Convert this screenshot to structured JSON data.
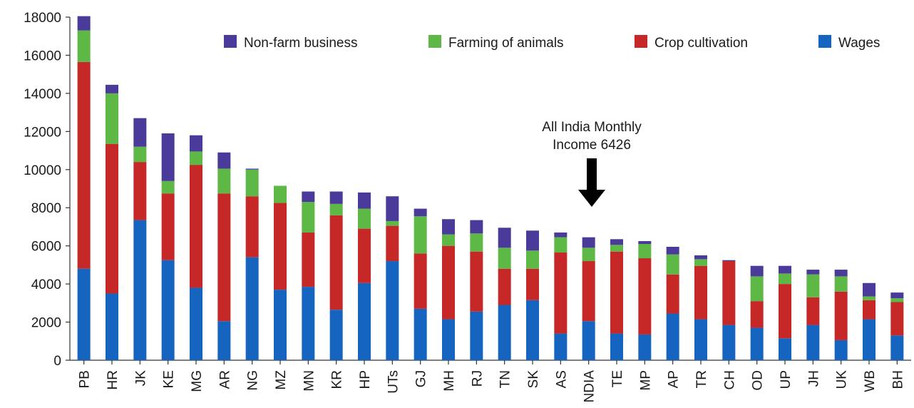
{
  "chart_data": {
    "type": "bar",
    "stacked": true,
    "categories": [
      "PB",
      "HR",
      "JK",
      "KE",
      "MG",
      "AR",
      "NG",
      "MZ",
      "MN",
      "KR",
      "HP",
      "UTs",
      "GJ",
      "MH",
      "RJ",
      "TN",
      "SK",
      "AS",
      "NDIA",
      "TE",
      "MP",
      "AP",
      "TR",
      "CH",
      "OD",
      "UP",
      "JH",
      "UK",
      "WB",
      "BH"
    ],
    "series": [
      {
        "name": "Wages",
        "color": "#1565c0",
        "values": [
          4800,
          3500,
          7350,
          5250,
          3800,
          2050,
          5400,
          3700,
          3850,
          2650,
          4050,
          5200,
          2700,
          2150,
          2550,
          2900,
          3150,
          1400,
          2050,
          1400,
          1350,
          2450,
          2150,
          1850,
          1700,
          1150,
          1850,
          1050,
          2150,
          1300
        ]
      },
      {
        "name": "Crop cultivation",
        "color": "#c62828",
        "values": [
          10850,
          7850,
          3050,
          3500,
          6450,
          6700,
          3200,
          4550,
          2850,
          4950,
          2850,
          1850,
          2900,
          3850,
          3150,
          1900,
          1650,
          4250,
          3150,
          4300,
          4000,
          2050,
          2800,
          3350,
          1400,
          2850,
          1450,
          2550,
          1000,
          1750
        ]
      },
      {
        "name": "Farming of animals",
        "color": "#5db845",
        "values": [
          1650,
          2650,
          800,
          650,
          700,
          1300,
          1400,
          900,
          1600,
          600,
          1050,
          250,
          1950,
          600,
          950,
          1100,
          950,
          800,
          700,
          350,
          750,
          1050,
          350,
          0,
          1300,
          550,
          1200,
          800,
          200,
          200
        ]
      },
      {
        "name": "Non-farm business",
        "color": "#4a3a9a",
        "values": [
          750,
          450,
          1500,
          2500,
          850,
          850,
          50,
          0,
          550,
          650,
          850,
          1300,
          400,
          800,
          700,
          1050,
          1050,
          250,
          550,
          300,
          150,
          400,
          200,
          50,
          550,
          400,
          250,
          350,
          700,
          300
        ]
      }
    ],
    "legend_order": [
      "Non-farm business",
      "Farming of animals",
      "Crop cultivation",
      "Wages"
    ],
    "legend_position": "top-right",
    "ylim": [
      0,
      18000
    ],
    "yticks": [
      0,
      2000,
      4000,
      6000,
      8000,
      10000,
      12000,
      14000,
      16000,
      18000
    ],
    "title": "",
    "xlabel": "",
    "ylabel": "",
    "grid": false,
    "annotation": {
      "lines": [
        "All India Monthly",
        "Income 6426"
      ],
      "target_category": "NDIA",
      "arrow": true
    }
  }
}
